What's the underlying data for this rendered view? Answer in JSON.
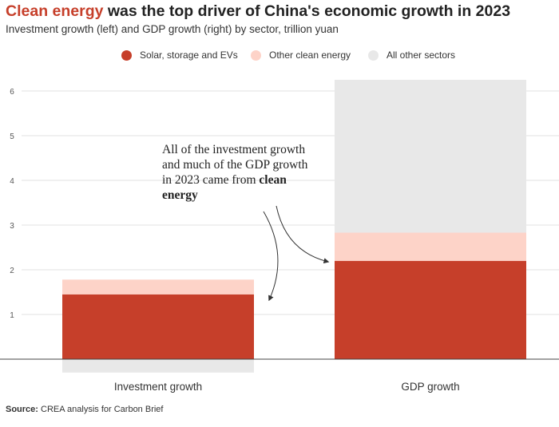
{
  "header": {
    "title_highlight": "Clean energy",
    "title_rest": " was the top driver of China's economic growth in 2023",
    "subtitle": "Investment growth (left) and GDP growth (right) by sector, trillion yuan"
  },
  "colors": {
    "solar": "#c63f2a",
    "other_clean": "#fdd3c8",
    "other_sectors": "#e8e8e8",
    "highlight": "#c63f2a"
  },
  "annotation": {
    "text": "All of the investment growth and much of the GDP growth in 2023 came from ",
    "bold": "clean energy"
  },
  "source": {
    "label": "Source:",
    "text": " CREA analysis for Carbon Brief"
  },
  "chart_data": {
    "type": "bar",
    "stacked": true,
    "title": "Clean energy was the top driver of China's economic growth in 2023",
    "subtitle": "Investment growth (left) and GDP growth (right) by sector, trillion yuan",
    "categories": [
      "Investment growth",
      "GDP growth"
    ],
    "series": [
      {
        "name": "Solar, storage and EVs",
        "color": "#c63f2a",
        "values": [
          1.45,
          2.2
        ]
      },
      {
        "name": "Other clean energy",
        "color": "#fdd3c8",
        "values": [
          0.33,
          0.63
        ]
      },
      {
        "name": "All other sectors",
        "color": "#e8e8e8",
        "values": [
          -0.3,
          3.42
        ]
      }
    ],
    "yticks": [
      1,
      2,
      3,
      4,
      5,
      6
    ],
    "ylim": [
      -0.3,
      6.3
    ],
    "xlabel": "",
    "ylabel": "",
    "grid": true,
    "legend": "top"
  }
}
